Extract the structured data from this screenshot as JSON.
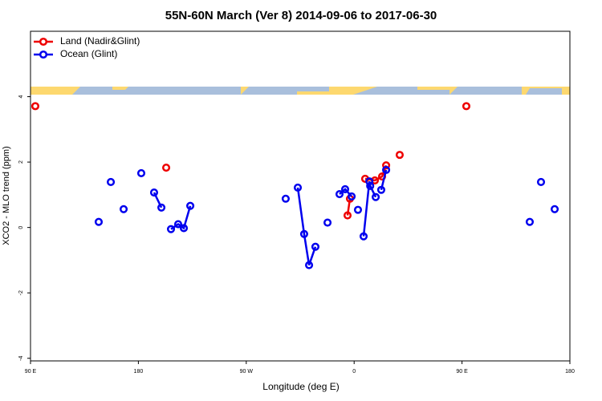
{
  "chart_data": {
    "type": "line",
    "title": "55N-60N March (Ver 8)   2014-09-06 to 2017-06-30",
    "x_label": "Longitude (deg E)",
    "y_label": "XCO2 - MLO trend (ppm)",
    "xlim": [
      90,
      540
    ],
    "ylim": [
      -4.08,
      6
    ],
    "xticks": [
      {
        "value": 90,
        "label": "90 E"
      },
      180,
      {
        "value": 270,
        "label": "90 W"
      },
      {
        "value": 360,
        "label": "0"
      },
      {
        "value": 450,
        "label": "90 E"
      },
      {
        "value": 540,
        "label": "180"
      }
    ],
    "yticks": [
      -4,
      -2,
      0,
      2,
      4
    ],
    "legend": "top-left",
    "series": [
      {
        "name": "Land (Nadir&Glint)",
        "color": "#ee0000",
        "x": [
          94,
          null,
          203.2,
          null,
          354.5,
          356.5,
          null,
          369.2,
          377.3,
          383.3,
          386.7,
          null,
          398,
          null,
          453.6
        ],
        "values": [
          3.71,
          null,
          1.83,
          null,
          0.37,
          0.88,
          null,
          1.49,
          1.44,
          1.56,
          1.9,
          null,
          2.22,
          null,
          3.71
        ]
      },
      {
        "name": "Ocean (Glint)",
        "color": "#0000ee",
        "x": [
          146.9,
          null,
          157,
          null,
          167.7,
          null,
          182.4,
          null,
          193.1,
          199.2,
          null,
          207.2,
          213.2,
          217.9,
          223.3,
          null,
          302.9,
          null,
          313,
          318.3,
          322.4,
          327.7,
          null,
          337.8,
          null,
          347.8,
          352.5,
          357.9,
          null,
          363.2,
          null,
          367.9,
          372.7,
          373.4,
          378,
          null,
          382.6,
          386.7,
          null,
          506.5,
          null,
          515.9,
          null,
          527.3
        ],
        "values": [
          0.17,
          null,
          1.39,
          null,
          0.56,
          null,
          1.66,
          null,
          1.07,
          0.61,
          null,
          -0.05,
          0.1,
          -0.02,
          0.66,
          null,
          0.88,
          null,
          1.22,
          -0.2,
          -1.15,
          -0.59,
          null,
          0.15,
          null,
          1.02,
          1.17,
          0.95,
          null,
          0.54,
          null,
          -0.27,
          1.41,
          1.27,
          0.93,
          null,
          1.15,
          1.76,
          null,
          0.17,
          null,
          1.39,
          null,
          0.56
        ]
      }
    ]
  }
}
